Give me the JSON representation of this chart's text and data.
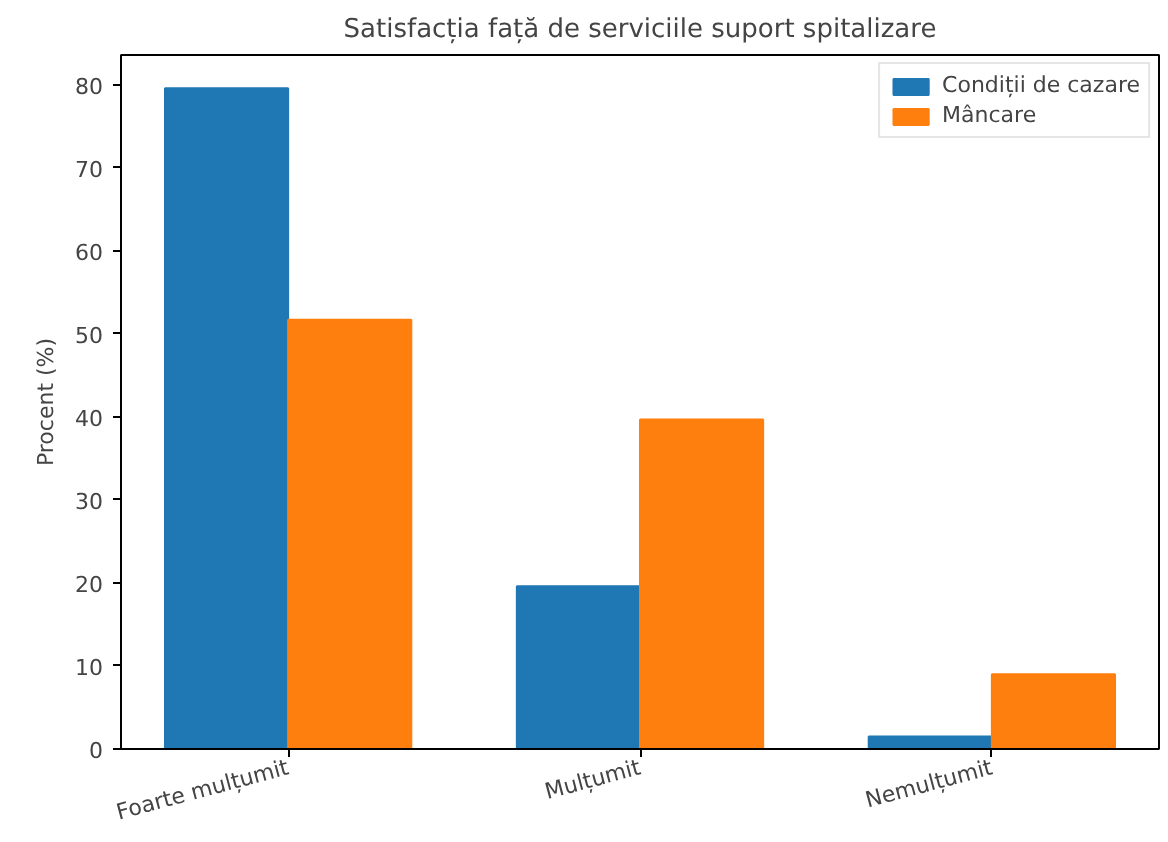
{
  "chart_data": {
    "type": "bar",
    "title": "Satisfacția față de serviciile suport spitalizare",
    "ylabel": "Procent (%)",
    "categories": [
      "Foarte mulțumit",
      "Mulțumit",
      "Nemulțumit"
    ],
    "series": [
      {
        "name": "Condiții de cazare",
        "color": "#1f77b4",
        "values": [
          79.6,
          19.6,
          1.5
        ]
      },
      {
        "name": "Mâncare",
        "color": "#ff7f0e",
        "values": [
          51.7,
          39.7,
          9.0
        ]
      }
    ],
    "ylim": [
      0,
      83.6
    ],
    "yticks": [
      0,
      10,
      20,
      30,
      40,
      50,
      60,
      70,
      80
    ],
    "grid": false,
    "legend": "top right"
  }
}
